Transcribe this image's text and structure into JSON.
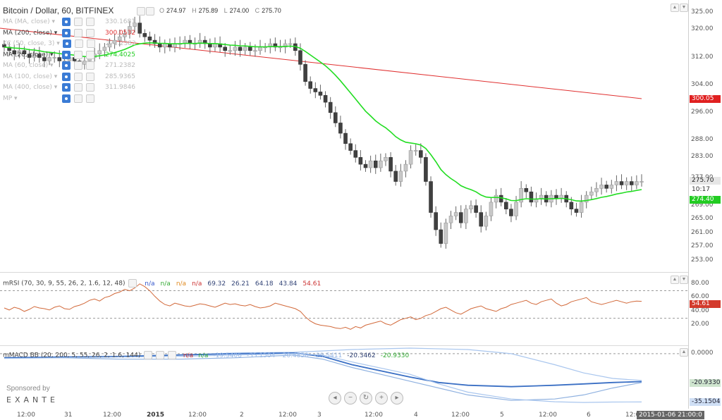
{
  "header": {
    "title": "Bitcoin / Dollar, 60, BITFINEX",
    "ohlc": [
      {
        "k": "O",
        "v": "274.97"
      },
      {
        "k": "H",
        "v": "275.89"
      },
      {
        "k": "L",
        "v": "274.00"
      },
      {
        "k": "C",
        "v": "275.70"
      }
    ]
  },
  "legend": [
    {
      "name": "MA (MA, close)",
      "value": "330.1681",
      "faded": true,
      "color": "#bbbbbb"
    },
    {
      "name": "MA (200, close)",
      "value": "300.0532",
      "faded": false,
      "color": "#e03030"
    },
    {
      "name": "KC (50, close, 3)",
      "value": "271.2382",
      "faded": true,
      "color": "#bbbbbb"
    },
    {
      "name": "MA (20, close)",
      "value": "274.4025",
      "faded": false,
      "color": "#22cc22"
    },
    {
      "name": "MA (60, close)",
      "value": "271.2382",
      "faded": true,
      "color": "#bbbbbb"
    },
    {
      "name": "MA (100, close)",
      "value": "285.9365",
      "faded": true,
      "color": "#bbbbbb"
    },
    {
      "name": "MA (400, close)",
      "value": "311.9846",
      "faded": true,
      "color": "#bbbbbb"
    },
    {
      "name": "MP",
      "value": "",
      "faded": true,
      "color": "#bbbbbb"
    }
  ],
  "price_axis": {
    "ticks": [
      "325.00",
      "320.00",
      "312.00",
      "304.00",
      "296.00",
      "288.00",
      "283.00",
      "277.00",
      "269.00",
      "265.00",
      "261.00",
      "257.00",
      "253.00"
    ],
    "tags": [
      {
        "label": "300.05",
        "bg": "#e02020",
        "fg": "#ffffff"
      },
      {
        "label": "275.70",
        "bg": "#e6e6e6",
        "fg": "#222222"
      },
      {
        "label": "10:17",
        "bg": "#ffffff",
        "fg": "#333333"
      },
      {
        "label": "274.40",
        "bg": "#22cc22",
        "fg": "#ffffff"
      }
    ]
  },
  "rsi": {
    "title": "mRSI (70, 30, 9, 55, 26, 2, 1.6, 12, 48)",
    "values": [
      {
        "t": "n/a",
        "c": "#3355cc"
      },
      {
        "t": "n/a",
        "c": "#33aa33"
      },
      {
        "t": "n/a",
        "c": "#e08a20"
      },
      {
        "t": "n/a",
        "c": "#cc3333"
      },
      {
        "t": "69.32",
        "c": "#334477"
      },
      {
        "t": "26.21",
        "c": "#334477"
      },
      {
        "t": "64.18",
        "c": "#334477"
      },
      {
        "t": "43.84",
        "c": "#334477"
      },
      {
        "t": "54.61",
        "c": "#cc3333"
      }
    ],
    "axis": [
      "80.00",
      "60.00",
      "40.00",
      "20.00"
    ],
    "tag": {
      "label": "54.61",
      "bg": "#d33a2c"
    }
  },
  "macd": {
    "title": "mMACD BB (20, 200, 5, 55, 26, 2, 1.6, 144)",
    "values": [
      {
        "t": "n/a",
        "c": "#cc3333"
      },
      {
        "t": "n/a",
        "c": "#33aa33"
      },
      {
        "t": "-19.5406",
        "c": "#9ab9e6"
      },
      {
        "t": "-35.1504",
        "c": "#9ab9e6"
      },
      {
        "t": "-20.4850",
        "c": "#9ab9e6"
      },
      {
        "t": "-29.5411",
        "c": "#9ab9e6"
      },
      {
        "t": "-20.3462",
        "c": "#334477"
      },
      {
        "t": "-20.9330",
        "c": "#33aa33"
      }
    ],
    "axis": [
      "0.0000"
    ],
    "tags": [
      {
        "label": "-20.9330",
        "bg": "#cfe5cf"
      },
      {
        "label": "-35.1504",
        "bg": "#cfdff5"
      }
    ]
  },
  "time_axis": [
    "12:00",
    "31",
    "12:00",
    "2015",
    "12:00",
    "2",
    "12:00",
    "3",
    "12:00",
    "4",
    "12:00",
    "5",
    "12:00",
    "6",
    "12:0"
  ],
  "time_tag": "2015-01-06 21:00:0",
  "sponsor": {
    "line1": "Sponsored by",
    "line2": "EXANTE"
  },
  "colors": {
    "ma200": "#e03030",
    "ma20": "#22dd22",
    "up": "#c8c8c8",
    "down": "#404040",
    "rsi": "#d2693a"
  },
  "chart_data": [
    {
      "type": "candlestick",
      "title": "Bitcoin / Dollar, 60, BITFINEX",
      "ylim": [
        253,
        325
      ],
      "x_ticks": [
        "12:00",
        "31",
        "12:00",
        "2015",
        "12:00",
        "2",
        "12:00",
        "3",
        "12:00",
        "4",
        "12:00",
        "5",
        "12:00",
        "6",
        "12:0"
      ],
      "close": [
        315,
        314,
        313,
        314,
        313,
        312,
        313,
        312,
        311,
        312,
        312,
        311,
        311,
        312,
        311,
        310,
        311,
        312,
        313,
        314,
        315,
        316,
        317,
        318,
        319,
        321,
        322,
        319,
        318,
        317,
        316,
        315,
        316,
        315,
        316,
        316,
        317,
        316,
        316,
        317,
        316,
        315,
        316,
        315,
        314,
        314,
        315,
        314,
        315,
        314,
        314,
        315,
        315,
        316,
        315,
        315,
        316,
        316,
        314,
        310,
        305,
        303,
        302,
        301,
        299,
        296,
        293,
        290,
        287,
        285,
        283,
        281,
        280,
        282,
        280,
        282,
        283,
        279,
        276,
        279,
        281,
        285,
        285,
        283,
        276,
        267,
        262,
        258,
        264,
        266,
        267,
        264,
        268,
        269,
        267,
        263,
        266,
        270,
        272,
        270,
        268,
        266,
        270,
        274,
        273,
        270,
        271,
        272,
        270,
        272,
        271,
        272,
        270,
        268,
        267,
        270,
        272,
        273,
        274,
        275,
        274,
        275,
        276,
        275,
        276,
        275,
        276,
        276
      ],
      "series": [
        {
          "name": "MA (200, close)",
          "value": "300.0532",
          "start": 320.5,
          "end": 300.05
        },
        {
          "name": "MA (20, close)",
          "value": "274.4025",
          "smoothed": true
        }
      ]
    },
    {
      "type": "line",
      "title": "mRSI (70, 30, 9, 55, 26, 2, 1.6, 12, 48)",
      "ylim": [
        0,
        90
      ],
      "bands": [
        70,
        30
      ],
      "values": [
        45,
        42,
        46,
        44,
        40,
        43,
        47,
        45,
        44,
        42,
        46,
        48,
        44,
        43,
        47,
        49,
        52,
        56,
        58,
        55,
        60,
        62,
        66,
        68,
        72,
        70,
        74,
        80,
        76,
        70,
        62,
        55,
        50,
        48,
        52,
        50,
        48,
        47,
        49,
        51,
        50,
        48,
        46,
        49,
        52,
        50,
        51,
        49,
        48,
        50,
        47,
        45,
        46,
        48,
        52,
        50,
        48,
        46,
        44,
        40,
        32,
        26,
        22,
        20,
        19,
        18,
        16,
        15,
        17,
        14,
        18,
        16,
        20,
        22,
        24,
        26,
        22,
        20,
        24,
        28,
        30,
        32,
        28,
        30,
        34,
        36,
        40,
        44,
        46,
        42,
        38,
        36,
        40,
        44,
        46,
        48,
        44,
        42,
        40,
        44,
        46,
        50,
        52,
        54,
        56,
        52,
        50,
        54,
        56,
        58,
        52,
        48,
        50,
        54,
        56,
        58,
        60,
        54,
        52,
        50,
        52,
        54,
        56,
        54,
        52,
        54,
        55,
        54.61
      ]
    },
    {
      "type": "line",
      "title": "mMACD BB (20, 200, 5, 55, 26, 2, 1.6, 144)",
      "ylim": [
        -38,
        3
      ],
      "series": [
        {
          "name": "upper",
          "points": [
            [
              0,
              -3
            ],
            [
              20,
              -3
            ],
            [
              40,
              -2
            ],
            [
              60,
              -1
            ],
            [
              80,
              0.5
            ],
            [
              100,
              1
            ],
            [
              110,
              2
            ],
            [
              120,
              3
            ],
            [
              140,
              4
            ],
            [
              160,
              3
            ],
            [
              175,
              0
            ],
            [
              190,
              -8
            ],
            [
              200,
              -14
            ],
            [
              210,
              -18
            ],
            [
              220,
              -19.5
            ]
          ]
        },
        {
          "name": "lower",
          "points": [
            [
              0,
              -3
            ],
            [
              20,
              -3
            ],
            [
              40,
              -4
            ],
            [
              60,
              -4
            ],
            [
              80,
              -3
            ],
            [
              100,
              -1
            ],
            [
              110,
              -4
            ],
            [
              120,
              -10
            ],
            [
              140,
              -20
            ],
            [
              160,
              -30
            ],
            [
              175,
              -34
            ],
            [
              190,
              -33
            ],
            [
              200,
              -30
            ],
            [
              210,
              -25
            ],
            [
              220,
              -21
            ]
          ]
        },
        {
          "name": "macd",
          "points": [
            [
              0,
              -3
            ],
            [
              20,
              -2.5
            ],
            [
              40,
              -2
            ],
            [
              60,
              -1
            ],
            [
              80,
              0
            ],
            [
              100,
              0.5
            ],
            [
              110,
              -2
            ],
            [
              120,
              -8
            ],
            [
              140,
              -17
            ],
            [
              150,
              -21
            ],
            [
              160,
              -23
            ],
            [
              175,
              -24
            ],
            [
              190,
              -23
            ],
            [
              200,
              -22
            ],
            [
              210,
              -21
            ],
            [
              220,
              -20.3
            ]
          ]
        },
        {
          "name": "lower2",
          "points": [
            [
              0,
              -3.5
            ],
            [
              20,
              -3
            ],
            [
              40,
              -2.5
            ],
            [
              60,
              -2
            ],
            [
              80,
              -1
            ],
            [
              100,
              0
            ],
            [
              110,
              -1
            ],
            [
              120,
              -6
            ],
            [
              140,
              -15
            ],
            [
              150,
              -22
            ],
            [
              160,
              -28
            ],
            [
              175,
              -33
            ],
            [
              190,
              -35
            ],
            [
              200,
              -35.5
            ],
            [
              210,
              -35.2
            ],
            [
              220,
              -35.15
            ]
          ]
        }
      ]
    }
  ]
}
